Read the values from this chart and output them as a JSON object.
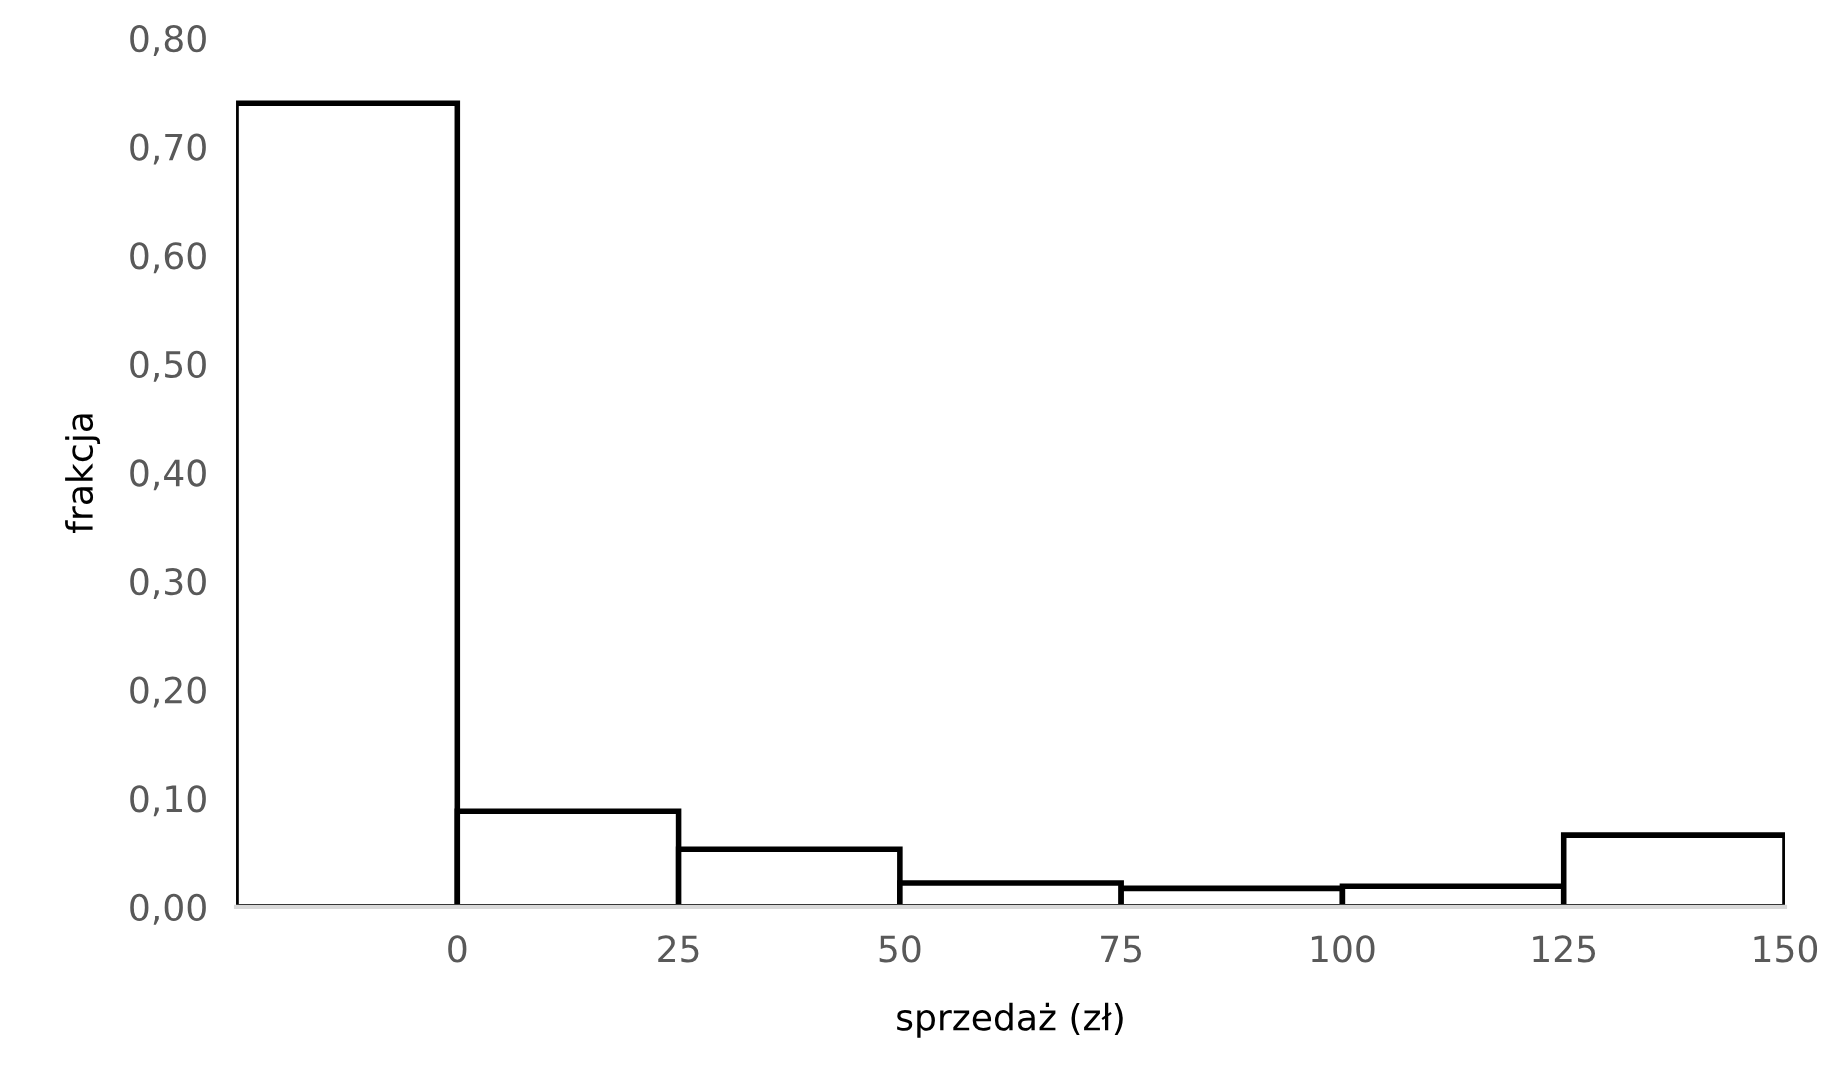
{
  "chart_data": {
    "type": "histogram",
    "xlabel": "sprzedaż (zł)",
    "ylabel": "frakcja",
    "bins": [
      -25,
      0,
      25,
      50,
      75,
      100,
      125,
      150
    ],
    "values": [
      0.74,
      0.088,
      0.053,
      0.022,
      0.017,
      0.019,
      0.066
    ],
    "color": "#ffffff",
    "xlim": [
      -25,
      150
    ],
    "xticks": [
      0,
      25,
      50,
      75,
      100,
      125,
      150
    ],
    "ylim": [
      0,
      0.8
    ],
    "yticks": [
      {
        "value": 0,
        "label": "0,00"
      },
      {
        "value": 0.1,
        "label": "0,10"
      },
      {
        "value": 0.2,
        "label": "0,20"
      },
      {
        "value": 0.3,
        "label": "0,30"
      },
      {
        "value": 0.4,
        "label": "0,40"
      },
      {
        "value": 0.5,
        "label": "0,50"
      },
      {
        "value": 0.6,
        "label": "0,60"
      },
      {
        "value": 0.7,
        "label": "0,70"
      },
      {
        "value": 0.8,
        "label": "0,80"
      }
    ],
    "grid": false,
    "legend": false
  }
}
